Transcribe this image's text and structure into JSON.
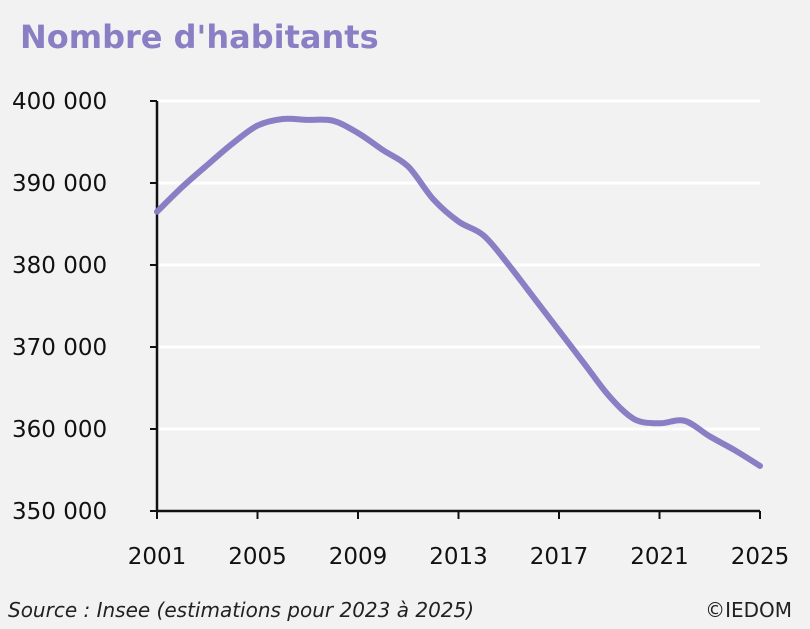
{
  "title": "Nombre d'habitants",
  "source": "Source : Insee (estimations pour 2023 à 2025)",
  "copyright": "©IEDOM",
  "colors": {
    "line": "#8a7fc4",
    "title": "#8a7fc4",
    "background": "#f2f2f2",
    "grid": "#ffffff",
    "axis": "#111111"
  },
  "chart_data": {
    "type": "line",
    "title": "Nombre d'habitants",
    "xlabel": "",
    "ylabel": "",
    "xlim": [
      2001,
      2025
    ],
    "ylim": [
      350000,
      400000
    ],
    "grid": true,
    "x_ticks": [
      2001,
      2005,
      2009,
      2013,
      2017,
      2021,
      2025
    ],
    "x_tick_labels": [
      "2001",
      "2005",
      "2009",
      "2013",
      "2017",
      "2021",
      "2025"
    ],
    "y_ticks": [
      350000,
      360000,
      370000,
      380000,
      390000,
      400000
    ],
    "y_tick_labels": [
      "350 000",
      "360 000",
      "370 000",
      "380 000",
      "390 000",
      "400 000"
    ],
    "series": [
      {
        "x": [
          2001,
          2002,
          2003,
          2004,
          2005,
          2006,
          2007,
          2008,
          2009,
          2010,
          2011,
          2012,
          2013,
          2014,
          2015,
          2016,
          2017,
          2018,
          2019,
          2020,
          2021,
          2022,
          2023,
          2024,
          2025
        ],
        "values": [
          386500,
          389500,
          392200,
          394800,
          397000,
          397800,
          397700,
          397600,
          396100,
          394000,
          392000,
          388000,
          385300,
          383600,
          380000,
          376000,
          372000,
          368000,
          364000,
          361200,
          360700,
          361000,
          359100,
          357400,
          355500
        ]
      }
    ]
  }
}
